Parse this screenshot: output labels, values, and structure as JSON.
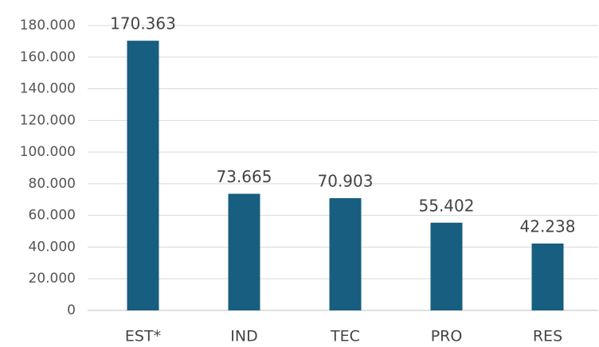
{
  "chart_data": {
    "type": "bar",
    "categories": [
      "EST*",
      "IND",
      "TEC",
      "PRO",
      "RES"
    ],
    "values": [
      170363,
      73665,
      70903,
      55402,
      42238
    ],
    "value_labels": [
      "170.363",
      "73.665",
      "70.903",
      "55.402",
      "42.238"
    ],
    "color": "#175e80",
    "ylim": [
      0,
      180000
    ],
    "yticks": [
      0,
      {
        "value": 20000,
        "label": "20.000"
      },
      {
        "value": 40000,
        "label": "40.000"
      },
      {
        "value": 60000,
        "label": "60.000"
      },
      {
        "value": 80000,
        "label": "80.000"
      },
      {
        "value": 100000,
        "label": "100.000"
      },
      {
        "value": 120000,
        "label": "120.000"
      },
      {
        "value": 140000,
        "label": "140.000"
      },
      {
        "value": 160000,
        "label": "160.000"
      },
      {
        "value": 180000,
        "label": "180.000"
      }
    ],
    "grid": true
  }
}
